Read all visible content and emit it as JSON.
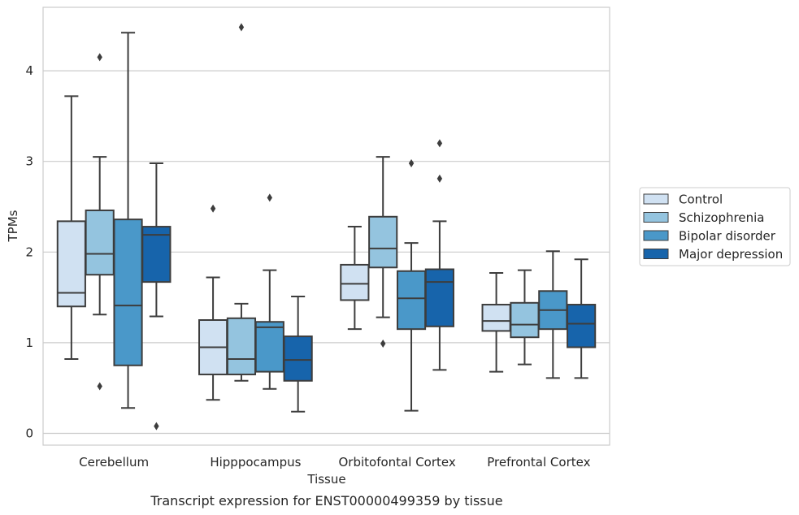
{
  "chart_data": {
    "type": "box",
    "caption": "Transcript expression for ENST00000499359 by tissue",
    "xlabel": "Tissue",
    "ylabel": "TPMs",
    "ylim": [
      -0.13,
      4.7
    ],
    "yticks": [
      0,
      1,
      2,
      3,
      4
    ],
    "grid": "horizontal",
    "legend_position": "outside-right",
    "categories": [
      "Cerebellum",
      "Hipppocampus",
      "Orbitofontal Cortex",
      "Prefrontal Cortex"
    ],
    "series": [
      {
        "name": "Control",
        "color": "#d0e1f2",
        "boxes": [
          {
            "whislo": 0.82,
            "q1": 1.4,
            "median": 1.55,
            "q3": 2.34,
            "whishi": 3.72,
            "fliers": []
          },
          {
            "whislo": 0.37,
            "q1": 0.65,
            "median": 0.95,
            "q3": 1.25,
            "whishi": 1.72,
            "fliers": [
              2.48
            ]
          },
          {
            "whislo": 1.15,
            "q1": 1.47,
            "median": 1.65,
            "q3": 1.86,
            "whishi": 2.28,
            "fliers": []
          },
          {
            "whislo": 0.68,
            "q1": 1.13,
            "median": 1.24,
            "q3": 1.42,
            "whishi": 1.77,
            "fliers": []
          }
        ]
      },
      {
        "name": "Schizophrenia",
        "color": "#94c4df",
        "boxes": [
          {
            "whislo": 1.31,
            "q1": 1.75,
            "median": 1.98,
            "q3": 2.46,
            "whishi": 3.05,
            "fliers": [
              0.52,
              4.15
            ]
          },
          {
            "whislo": 0.58,
            "q1": 0.65,
            "median": 0.82,
            "q3": 1.27,
            "whishi": 1.43,
            "fliers": [
              4.48
            ]
          },
          {
            "whislo": 1.28,
            "q1": 1.83,
            "median": 2.04,
            "q3": 2.39,
            "whishi": 3.05,
            "fliers": [
              0.99
            ]
          },
          {
            "whislo": 0.76,
            "q1": 1.06,
            "median": 1.2,
            "q3": 1.44,
            "whishi": 1.8,
            "fliers": []
          }
        ]
      },
      {
        "name": "Bipolar disorder",
        "color": "#4a98c9",
        "boxes": [
          {
            "whislo": 0.28,
            "q1": 0.75,
            "median": 1.41,
            "q3": 2.36,
            "whishi": 4.42,
            "fliers": []
          },
          {
            "whislo": 0.49,
            "q1": 0.68,
            "median": 1.17,
            "q3": 1.23,
            "whishi": 1.8,
            "fliers": [
              2.6
            ]
          },
          {
            "whislo": 0.25,
            "q1": 1.15,
            "median": 1.49,
            "q3": 1.79,
            "whishi": 2.1,
            "fliers": [
              2.98
            ]
          },
          {
            "whislo": 0.61,
            "q1": 1.15,
            "median": 1.36,
            "q3": 1.57,
            "whishi": 2.01,
            "fliers": []
          }
        ]
      },
      {
        "name": "Major depression",
        "color": "#1764ab",
        "boxes": [
          {
            "whislo": 1.29,
            "q1": 1.67,
            "median": 2.19,
            "q3": 2.28,
            "whishi": 2.98,
            "fliers": [
              0.08
            ]
          },
          {
            "whislo": 0.24,
            "q1": 0.58,
            "median": 0.81,
            "q3": 1.07,
            "whishi": 1.51,
            "fliers": []
          },
          {
            "whislo": 0.7,
            "q1": 1.18,
            "median": 1.67,
            "q3": 1.81,
            "whishi": 2.34,
            "fliers": [
              2.81,
              3.2
            ]
          },
          {
            "whislo": 0.61,
            "q1": 0.95,
            "median": 1.21,
            "q3": 1.42,
            "whishi": 1.92,
            "fliers": []
          }
        ]
      }
    ]
  }
}
